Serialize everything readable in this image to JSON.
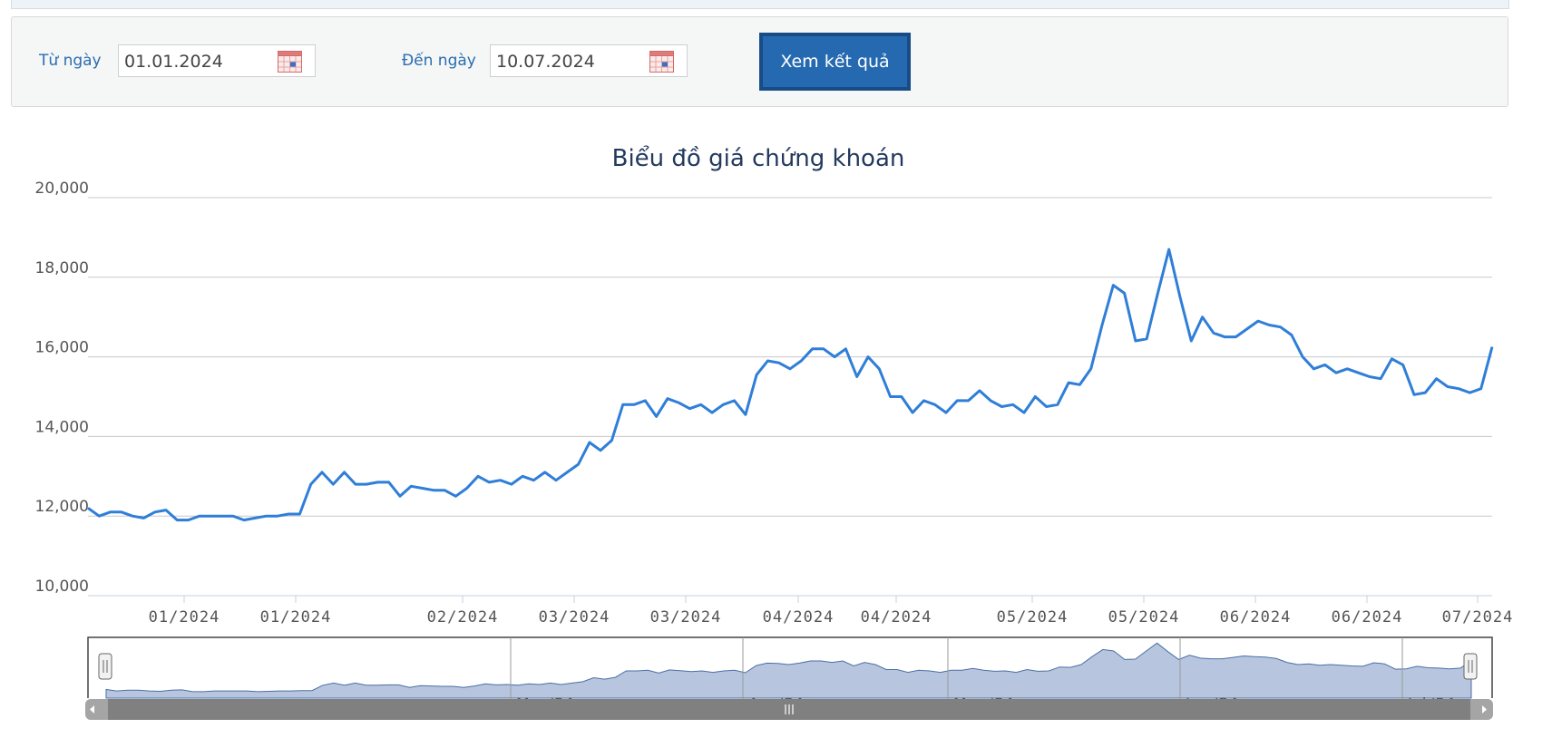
{
  "filter": {
    "from_label": "Từ ngày",
    "from_value": "01.01.2024",
    "to_label": "Đến ngày",
    "to_value": "10.07.2024",
    "submit_label": "Xem kết quả"
  },
  "chart_data": {
    "type": "line",
    "title": "Biểu đồ giá chứng khoán",
    "xlabel": "",
    "ylabel": "",
    "ylim": [
      10000,
      20000
    ],
    "yticks": [
      "20,000",
      "18,000",
      "16,000",
      "14,000",
      "12,000",
      "10,000"
    ],
    "xtick_labels": [
      "01/2024",
      "01/2024",
      "02/2024",
      "03/2024",
      "03/2024",
      "04/2024",
      "04/2024",
      "05/2024",
      "05/2024",
      "06/2024",
      "06/2024",
      "07/2024"
    ],
    "navigator_labels": [
      "Mar '24",
      "Apr '24",
      "May '24",
      "Jun '24",
      "Jul '24"
    ],
    "grid": true,
    "line_color": "#2f7ed8",
    "series": [
      {
        "values": [
          12200,
          12000,
          12100,
          12100,
          12000,
          11950,
          12100,
          12150,
          11900,
          11900,
          12000,
          12000,
          12000,
          12000,
          11900,
          11950,
          12000,
          12000,
          12050,
          12050,
          12800,
          13100,
          12800,
          13100,
          12800,
          12800,
          12850,
          12850,
          12500,
          12750,
          12700,
          12650,
          12650,
          12500,
          12700,
          13000,
          12850,
          12900,
          12800,
          13000,
          12900,
          13100,
          12900,
          13100,
          13300,
          13850,
          13650,
          13900,
          14800,
          14800,
          14900,
          14500,
          14950,
          14850,
          14700,
          14800,
          14600,
          14800,
          14900,
          14550,
          15550,
          15900,
          15850,
          15700,
          15900,
          16200,
          16200,
          16000,
          16200,
          15500,
          16000,
          15700,
          15000,
          15000,
          14600,
          14900,
          14800,
          14600,
          14900,
          14900,
          15150,
          14900,
          14750,
          14800,
          14600,
          15000,
          14750,
          14800,
          15350,
          15300,
          15700,
          16800,
          17800,
          17600,
          16400,
          16450,
          17600,
          18700,
          17500,
          16400,
          17000,
          16600,
          16500,
          16500,
          16700,
          16900,
          16800,
          16750,
          16550,
          16000,
          15700,
          15800,
          15600,
          15700,
          15600,
          15500,
          15450,
          15950,
          15800,
          15050,
          15100,
          15450,
          15250,
          15200,
          15100,
          15200,
          16250
        ]
      }
    ]
  }
}
